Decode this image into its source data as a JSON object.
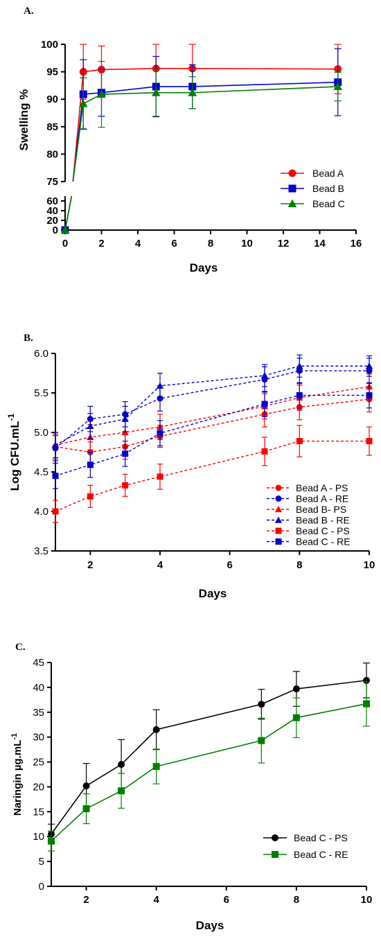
{
  "chart_data": [
    {
      "panel_label": "A.",
      "type": "line",
      "xlabel": "Days",
      "ylabel": "Swelling %",
      "x_ticks": [
        0,
        2,
        4,
        6,
        8,
        10,
        12,
        14,
        16
      ],
      "xlim": [
        0,
        16
      ],
      "y_upper_ticks": [
        75,
        80,
        85,
        90,
        95,
        100
      ],
      "y_upper_range": [
        75,
        100
      ],
      "y_lower_ticks": [
        0,
        20,
        40,
        60
      ],
      "y_lower_range": [
        0,
        70
      ],
      "broken_axis": true,
      "legend_position": "bottom-right",
      "series": [
        {
          "name": "Bead A",
          "color": "#ff0000",
          "marker": "circle",
          "x": [
            0,
            1,
            2,
            5,
            7,
            15
          ],
          "y": [
            0,
            95.0,
            95.4,
            95.6,
            95.6,
            95.5
          ],
          "err": [
            0,
            5.0,
            4.3,
            4.4,
            4.4,
            4.5
          ]
        },
        {
          "name": "Bead B",
          "color": "#0000cc",
          "marker": "square",
          "x": [
            0,
            1,
            2,
            5,
            7,
            15
          ],
          "y": [
            0,
            90.9,
            91.2,
            92.3,
            92.3,
            93.1
          ],
          "err": [
            0,
            6.3,
            4.3,
            5.5,
            4.0,
            6.1
          ]
        },
        {
          "name": "Bead C",
          "color": "#008000",
          "marker": "triangle",
          "x": [
            0,
            1,
            2,
            5,
            7,
            15
          ],
          "y": [
            0,
            89.2,
            90.9,
            91.2,
            91.2,
            92.3
          ],
          "err": [
            0,
            4.7,
            6.0,
            4.3,
            2.9,
            2.6
          ]
        }
      ]
    },
    {
      "panel_label": "B.",
      "type": "line",
      "xlabel": "Days",
      "ylabel": "Log CFU.mL",
      "ylabel_superscript": "-1",
      "x_ticks": [
        2,
        4,
        6,
        8,
        10
      ],
      "xlim": [
        1,
        10
      ],
      "y_ticks": [
        "3.5",
        "4.0",
        "4.5",
        "5.0",
        "5.5",
        "6.0"
      ],
      "ylim": [
        3.5,
        6.0
      ],
      "legend_position": "bottom-right",
      "series": [
        {
          "name": "Bead A - PS",
          "color": "#ff0000",
          "marker": "circle",
          "dashed": true,
          "x": [
            1,
            2,
            3,
            4,
            7,
            8,
            10
          ],
          "y": [
            4.82,
            4.75,
            4.82,
            4.95,
            5.23,
            5.32,
            5.42
          ],
          "err": [
            0.16,
            0.13,
            0.16,
            0.14,
            0.16,
            0.16,
            0.16
          ]
        },
        {
          "name": "Bead A - RE",
          "color": "#0000cc",
          "marker": "circle",
          "dashed": true,
          "x": [
            1,
            2,
            3,
            4,
            7,
            8,
            10
          ],
          "y": [
            4.8,
            5.17,
            5.23,
            5.43,
            5.67,
            5.78,
            5.78
          ],
          "err": [
            0.16,
            0.16,
            0.16,
            0.16,
            0.16,
            0.16,
            0.16
          ]
        },
        {
          "name": "Bead B- PS",
          "color": "#ff0000",
          "marker": "triangle",
          "dashed": true,
          "x": [
            1,
            2,
            3,
            4,
            7,
            8,
            10
          ],
          "y": [
            4.84,
            4.94,
            5.0,
            5.07,
            5.33,
            5.44,
            5.58
          ],
          "err": [
            0.16,
            0.16,
            0.16,
            0.16,
            0.16,
            0.16,
            0.16
          ]
        },
        {
          "name": "Bead B - RE",
          "color": "#0000cc",
          "marker": "triangle",
          "dashed": true,
          "x": [
            1,
            2,
            3,
            4,
            7,
            8,
            10
          ],
          "y": [
            4.84,
            5.08,
            5.17,
            5.59,
            5.72,
            5.84,
            5.84
          ],
          "err": [
            0.16,
            0.16,
            0.16,
            0.16,
            0.14,
            0.14,
            0.13
          ]
        },
        {
          "name": "Bead C - PS",
          "color": "#ff0000",
          "marker": "square",
          "dashed": true,
          "x": [
            1,
            2,
            3,
            4,
            7,
            8,
            10
          ],
          "y": [
            4.0,
            4.19,
            4.33,
            4.44,
            4.76,
            4.89,
            4.89
          ],
          "err": [
            0.14,
            0.14,
            0.14,
            0.16,
            0.18,
            0.2,
            0.18
          ]
        },
        {
          "name": "Bead C - RE",
          "color": "#0000cc",
          "marker": "square",
          "dashed": true,
          "x": [
            1,
            2,
            3,
            4,
            7,
            8,
            10
          ],
          "y": [
            4.45,
            4.59,
            4.73,
            4.99,
            5.36,
            5.47,
            5.47
          ],
          "err": [
            0.16,
            0.16,
            0.16,
            0.16,
            0.16,
            0.16,
            0.16
          ]
        }
      ]
    },
    {
      "panel_label": "C.",
      "type": "line",
      "xlabel": "Days",
      "ylabel": "Naringin µg.mL",
      "ylabel_superscript": "-1",
      "x_ticks": [
        2,
        4,
        6,
        8,
        10
      ],
      "xlim": [
        1,
        10
      ],
      "y_ticks": [
        0,
        5,
        10,
        15,
        20,
        25,
        30,
        35,
        40,
        45
      ],
      "ylim": [
        0,
        45
      ],
      "legend_position": "bottom-right",
      "series": [
        {
          "name": "Bead C - PS",
          "color": "#000000",
          "marker": "circle",
          "x": [
            1,
            2,
            3,
            4,
            7,
            8,
            10
          ],
          "y": [
            10.5,
            20.2,
            24.5,
            31.5,
            36.6,
            39.7,
            41.4
          ],
          "err": [
            2.0,
            4.5,
            5.0,
            4.0,
            3.0,
            3.5,
            3.5
          ]
        },
        {
          "name": "Bead C - RE",
          "color": "#008000",
          "marker": "square",
          "x": [
            1,
            2,
            3,
            4,
            7,
            8,
            10
          ],
          "y": [
            9.1,
            15.6,
            19.2,
            24.1,
            29.3,
            33.9,
            36.7
          ],
          "err": [
            2.0,
            3.0,
            3.5,
            3.5,
            4.5,
            4.0,
            4.5
          ]
        }
      ]
    }
  ]
}
